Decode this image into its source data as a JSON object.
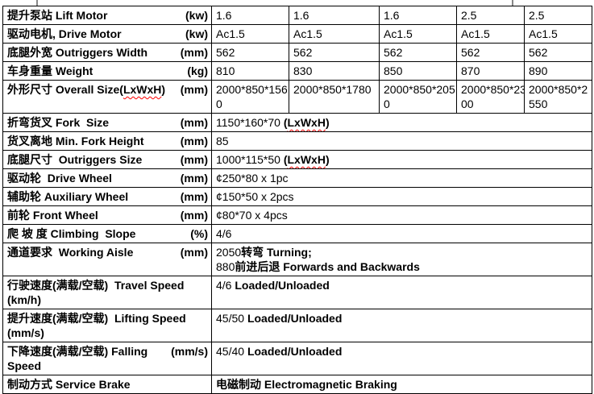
{
  "colors": {
    "text": "#000000",
    "table_border": "#000000",
    "squiggly_underline": "#ff0000",
    "background": "#ffffff"
  },
  "table": {
    "rows": [
      {
        "label_parts": [
          {
            "text": "提升泵站 Lift Motor"
          }
        ],
        "unit": "(kw)",
        "cells": [
          "1.6",
          "1.6",
          "1.6",
          "2.5",
          "2.5"
        ]
      },
      {
        "label_parts": [
          {
            "text": "驱动电机, Drive Motor"
          }
        ],
        "unit": "(kw)",
        "cells": [
          "Ac1.5",
          "Ac1.5",
          "Ac1.5",
          "Ac1.5",
          "Ac1.5"
        ]
      },
      {
        "label_parts": [
          {
            "text": "底腿外宽 Outriggers Width"
          }
        ],
        "unit": "(mm)",
        "cells": [
          "562",
          "562",
          "562",
          "562",
          "562"
        ]
      },
      {
        "label_parts": [
          {
            "text": "车身重量 Weight"
          }
        ],
        "unit": "(kg)",
        "cells": [
          "810",
          "830",
          "850",
          "870",
          "890"
        ]
      },
      {
        "label_parts": [
          {
            "text": "外形尺寸 Overall Size("
          },
          {
            "text": "LxWxH",
            "squiggly": true
          },
          {
            "text": ")"
          }
        ],
        "unit": "(mm)",
        "cells": [
          "2000*850*156\n0",
          "2000*850*1780",
          "2000*850*205\n0",
          "2000*850*23\n00",
          "2000*850*2\n550"
        ]
      },
      {
        "label_parts": [
          {
            "text": "折弯货叉 Fork  Size"
          }
        ],
        "unit": "(mm)",
        "merged_parts": [
          {
            "text": "1150*160*70 "
          },
          {
            "text": "(",
            "bold": true
          },
          {
            "text": "LxWxH",
            "bold": true,
            "squiggly": true
          },
          {
            "text": ")",
            "bold": true
          }
        ]
      },
      {
        "label_parts": [
          {
            "text": "货叉离地 Min. Fork Height"
          }
        ],
        "unit": "(mm)",
        "merged_parts": [
          {
            "text": "85"
          }
        ]
      },
      {
        "label_parts": [
          {
            "text": "底腿尺寸  Outriggers Size"
          }
        ],
        "unit": "(mm)",
        "merged_parts": [
          {
            "text": "1000*115*50 "
          },
          {
            "text": "(",
            "bold": true
          },
          {
            "text": "LxWxH",
            "bold": true,
            "squiggly": true
          },
          {
            "text": ")",
            "bold": true
          }
        ]
      },
      {
        "label_parts": [
          {
            "text": "驱动轮  Drive Wheel"
          }
        ],
        "unit": "(mm)",
        "merged_parts": [
          {
            "text": "¢250*80 x 1pc"
          }
        ]
      },
      {
        "label_parts": [
          {
            "text": "辅助轮 Auxiliary Wheel"
          }
        ],
        "unit": "(mm)",
        "merged_parts": [
          {
            "text": "¢150*50 x 2pcs"
          }
        ]
      },
      {
        "label_parts": [
          {
            "text": "前轮 Front Wheel"
          }
        ],
        "unit": "(mm)",
        "merged_parts": [
          {
            "text": "¢80*70 x 4pcs"
          }
        ]
      },
      {
        "label_parts": [
          {
            "text": "爬 坡 度 Climbing  Slope"
          }
        ],
        "unit": "(%)",
        "merged_parts": [
          {
            "text": "4/6"
          }
        ]
      },
      {
        "label_parts": [
          {
            "text": "通道要求  Working Aisle"
          }
        ],
        "unit": "(mm)",
        "merged_parts": [
          {
            "text": "2050"
          },
          {
            "text": "转弯 Turning;",
            "bold": true
          },
          {
            "text": "\n"
          },
          {
            "text": "880"
          },
          {
            "text": "前进后退 Forwards and Backwards",
            "bold": true
          }
        ]
      },
      {
        "label_parts": [
          {
            "text": "行驶速度(满载/空载)  Travel Speed  (km/h)"
          }
        ],
        "unit": "",
        "merged_parts": [
          {
            "text": "4/6 "
          },
          {
            "text": "Loaded/Unloaded",
            "bold": true
          }
        ]
      },
      {
        "label_parts": [
          {
            "text": "提升速度(满载/空载)  Lifting Speed\n(mm/s)"
          }
        ],
        "unit": "",
        "merged_parts": [
          {
            "text": "45/50 "
          },
          {
            "text": "Loaded/Unloaded",
            "bold": true
          }
        ]
      },
      {
        "label_parts": [
          {
            "text": "下降速度(满载/空载) Falling Speed"
          }
        ],
        "unit": "(mm/s)",
        "merged_parts": [
          {
            "text": "45/40 "
          },
          {
            "text": "Loaded/Unloaded",
            "bold": true
          }
        ]
      },
      {
        "label_parts": [
          {
            "text": "制动方式 Service Brake"
          }
        ],
        "unit": "",
        "merged_parts": [
          {
            "text": "电磁制动 Electromagnetic Braking",
            "bold": true
          }
        ]
      }
    ]
  }
}
